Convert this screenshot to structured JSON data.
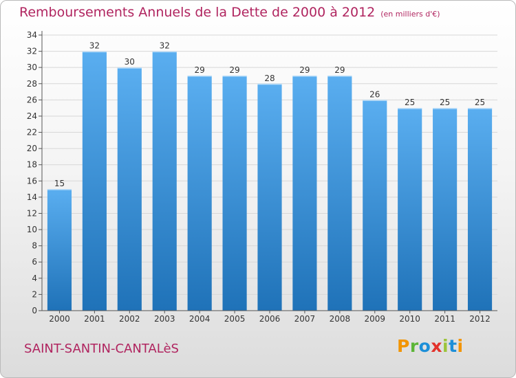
{
  "title": "Remboursements Annuels de la Dette de 2000 à 2012",
  "unit": "(en milliers d'€)",
  "commune": "SAINT-SANTIN-CANTALèS",
  "logo": {
    "letters": [
      "P",
      "r",
      "o",
      "x",
      "i",
      "t",
      "i"
    ],
    "colors": [
      "#f29400",
      "#5bb537",
      "#1d8fd8",
      "#e3322b",
      "#9cc43a",
      "#1d8fd8",
      "#f29400"
    ]
  },
  "colors": {
    "bar_light": "#5aaef0",
    "bar_dark": "#1f72b8",
    "title": "#b0245f",
    "grid": "#d7d7d7"
  },
  "chart_data": {
    "type": "bar",
    "title": "Remboursements Annuels de la Dette de 2000 à 2012",
    "categories": [
      "2000",
      "2001",
      "2002",
      "2003",
      "2004",
      "2005",
      "2006",
      "2007",
      "2008",
      "2009",
      "2010",
      "2011",
      "2012"
    ],
    "values": [
      15,
      32,
      30,
      32,
      29,
      29,
      28,
      29,
      29,
      26,
      25,
      25,
      25
    ],
    "ylim": [
      0,
      34
    ],
    "ytick_step": 2,
    "grid": true,
    "legend": "none"
  }
}
